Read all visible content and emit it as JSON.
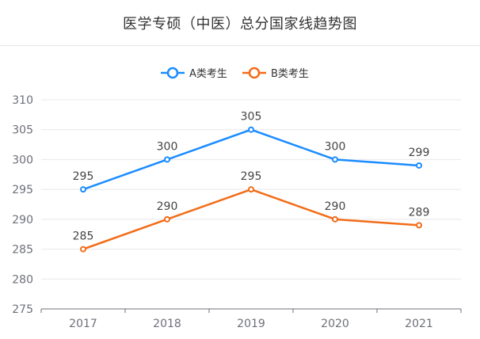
{
  "title": "医学专硕（中医）总分国家线趋势图",
  "chart_data": {
    "type": "line",
    "categories": [
      "2017",
      "2018",
      "2019",
      "2020",
      "2021"
    ],
    "series": [
      {
        "name": "A类考生",
        "values": [
          295,
          300,
          305,
          300,
          299
        ],
        "color": "#1a8cff"
      },
      {
        "name": "B类考生",
        "values": [
          285,
          290,
          295,
          290,
          289
        ],
        "color": "#f26c18"
      }
    ],
    "y_ticks": [
      275,
      280,
      285,
      290,
      295,
      300,
      305,
      310
    ],
    "ylim": [
      275,
      310
    ],
    "legend_position": "top-center",
    "grid": true,
    "data_labels": true
  }
}
